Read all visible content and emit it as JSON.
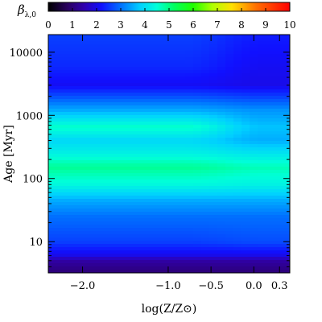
{
  "chart_data": {
    "type": "heatmap",
    "title": "",
    "xlabel": "log(Z/Z⊙)",
    "ylabel": "Age [Myr]",
    "x_scale": "linear",
    "y_scale": "log",
    "xlim": [
      -2.4,
      0.42
    ],
    "ylim": [
      3.2,
      19000
    ],
    "x_ticks": [
      -2.0,
      -1.0,
      -0.5,
      0.0,
      0.3
    ],
    "x_tick_labels": [
      "−2.0",
      "−1.0",
      "−0.5",
      "0.0",
      "0.3"
    ],
    "y_ticks": [
      10,
      100,
      1000,
      10000
    ],
    "y_tick_labels": [
      "10",
      "100",
      "1000",
      "10000"
    ],
    "colorbar": {
      "label": "β",
      "label_subscript": "λ,0",
      "position": "top",
      "range": [
        0,
        10
      ],
      "ticks": [
        0,
        1,
        2,
        3,
        4,
        5,
        6,
        7,
        8,
        9,
        10
      ],
      "tick_labels": [
        "0",
        "1",
        "2",
        "3",
        "4",
        "5",
        "6",
        "7",
        "8",
        "9",
        "10"
      ],
      "colormap": "rainbow (black-purple-blue-cyan-green-yellow-red)"
    },
    "profile_low_metallicity": [
      {
        "age_myr": 3.2,
        "value": 1.0
      },
      {
        "age_myr": 5,
        "value": 1.4
      },
      {
        "age_myr": 6,
        "value": 2.0
      },
      {
        "age_myr": 10,
        "value": 2.6
      },
      {
        "age_myr": 25,
        "value": 3.0
      },
      {
        "age_myr": 45,
        "value": 3.5
      },
      {
        "age_myr": 80,
        "value": 4.4
      },
      {
        "age_myr": 150,
        "value": 4.9
      },
      {
        "age_myr": 250,
        "value": 4.3
      },
      {
        "age_myr": 400,
        "value": 3.9
      },
      {
        "age_myr": 650,
        "value": 4.6
      },
      {
        "age_myr": 1200,
        "value": 3.5
      },
      {
        "age_myr": 3000,
        "value": 2.1
      },
      {
        "age_myr": 6000,
        "value": 2.4
      },
      {
        "age_myr": 19000,
        "value": 2.6
      }
    ],
    "profile_high_metallicity": [
      {
        "age_myr": 3.2,
        "value": 1.0
      },
      {
        "age_myr": 5,
        "value": 1.4
      },
      {
        "age_myr": 6,
        "value": 2.0
      },
      {
        "age_myr": 10,
        "value": 2.7
      },
      {
        "age_myr": 25,
        "value": 3.0
      },
      {
        "age_myr": 45,
        "value": 3.5
      },
      {
        "age_myr": 80,
        "value": 4.3
      },
      {
        "age_myr": 150,
        "value": 4.7
      },
      {
        "age_myr": 250,
        "value": 4.1
      },
      {
        "age_myr": 400,
        "value": 3.5
      },
      {
        "age_myr": 650,
        "value": 3.7
      },
      {
        "age_myr": 1200,
        "value": 3.3
      },
      {
        "age_myr": 3000,
        "value": 2.0
      },
      {
        "age_myr": 6000,
        "value": 2.1
      },
      {
        "age_myr": 19000,
        "value": 2.3
      }
    ],
    "metallicity_transition": [
      -0.8,
      0.1
    ]
  }
}
